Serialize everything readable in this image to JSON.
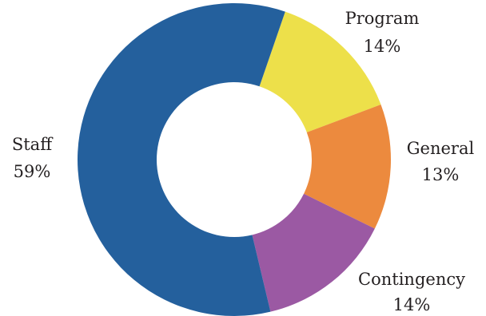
{
  "chart_data": {
    "type": "pie",
    "donut": true,
    "title": "",
    "slices": [
      {
        "label": "Program",
        "value": 14,
        "value_label": "14%",
        "color": "#ede04a"
      },
      {
        "label": "General",
        "value": 13,
        "value_label": "13%",
        "color": "#ec8a3e"
      },
      {
        "label": "Contingency",
        "value": 14,
        "value_label": "14%",
        "color": "#9b59a3"
      },
      {
        "label": "Staff",
        "value": 59,
        "value_label": "59%",
        "color": "#24609d"
      }
    ],
    "legend": "none",
    "labels_outside": true
  }
}
